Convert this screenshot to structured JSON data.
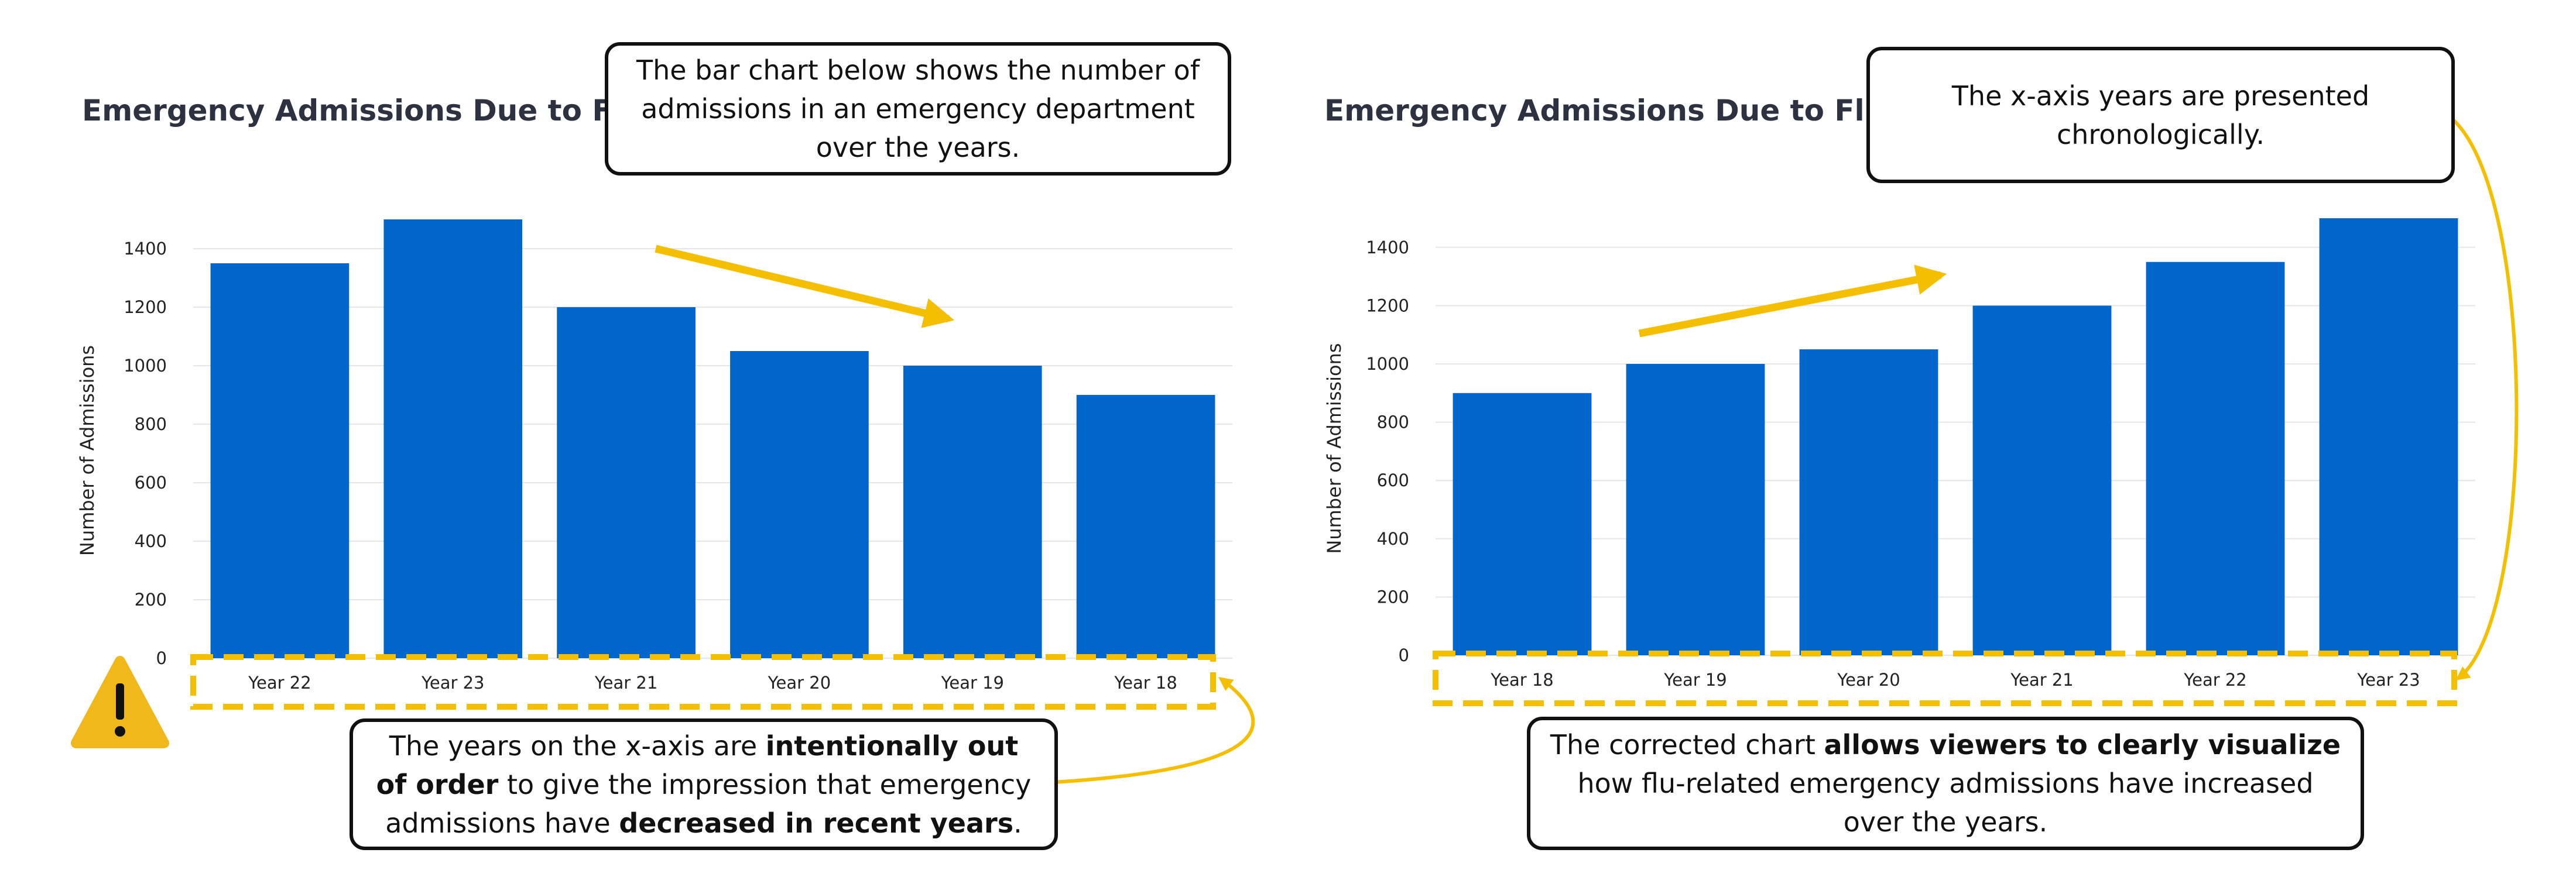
{
  "colors": {
    "bar": "#0066cc",
    "highlight": "#f4bf00",
    "grid": "#e6e6e6",
    "warning": "#f0b81b"
  },
  "icons": {
    "warning": "warning-triangle-icon"
  },
  "callouts": {
    "left_top": "The bar chart below shows the number of admissions in an emergency department over the years.",
    "left_bottom": {
      "p1": "The years on the x-axis are ",
      "b1": "intentionally out of order",
      "p2": " to give the impression that emergency admissions have ",
      "b2": "decreased in recent years",
      "p3": "."
    },
    "right_top": "The x-axis years are presented chronologically.",
    "right_bottom": {
      "p1": "The corrected chart ",
      "b1": "allows viewers to clearly visualize",
      "p2": " how flu-related emergency admissions have increased over the years."
    }
  },
  "chart_data": [
    {
      "type": "bar",
      "title": "Emergency Admissions Due to Flu",
      "xlabel": "",
      "ylabel": "Number of Admissions",
      "categories": [
        "Year 22",
        "Year 23",
        "Year 21",
        "Year 20",
        "Year 19",
        "Year 18"
      ],
      "values": [
        1350,
        1500,
        1200,
        1050,
        1000,
        900
      ],
      "ylim": [
        0,
        1500
      ],
      "yticks": [
        0,
        200,
        400,
        600,
        800,
        1000,
        1200,
        1400
      ],
      "grid": true,
      "trend": "down"
    },
    {
      "type": "bar",
      "title": "Emergency Admissions Due to Flu",
      "xlabel": "",
      "ylabel": "Number of Admissions",
      "categories": [
        "Year 18",
        "Year 19",
        "Year 20",
        "Year 21",
        "Year 22",
        "Year 23"
      ],
      "values": [
        900,
        1000,
        1050,
        1200,
        1350,
        1500
      ],
      "ylim": [
        0,
        1500
      ],
      "yticks": [
        0,
        200,
        400,
        600,
        800,
        1000,
        1200,
        1400
      ],
      "grid": true,
      "trend": "up"
    }
  ]
}
